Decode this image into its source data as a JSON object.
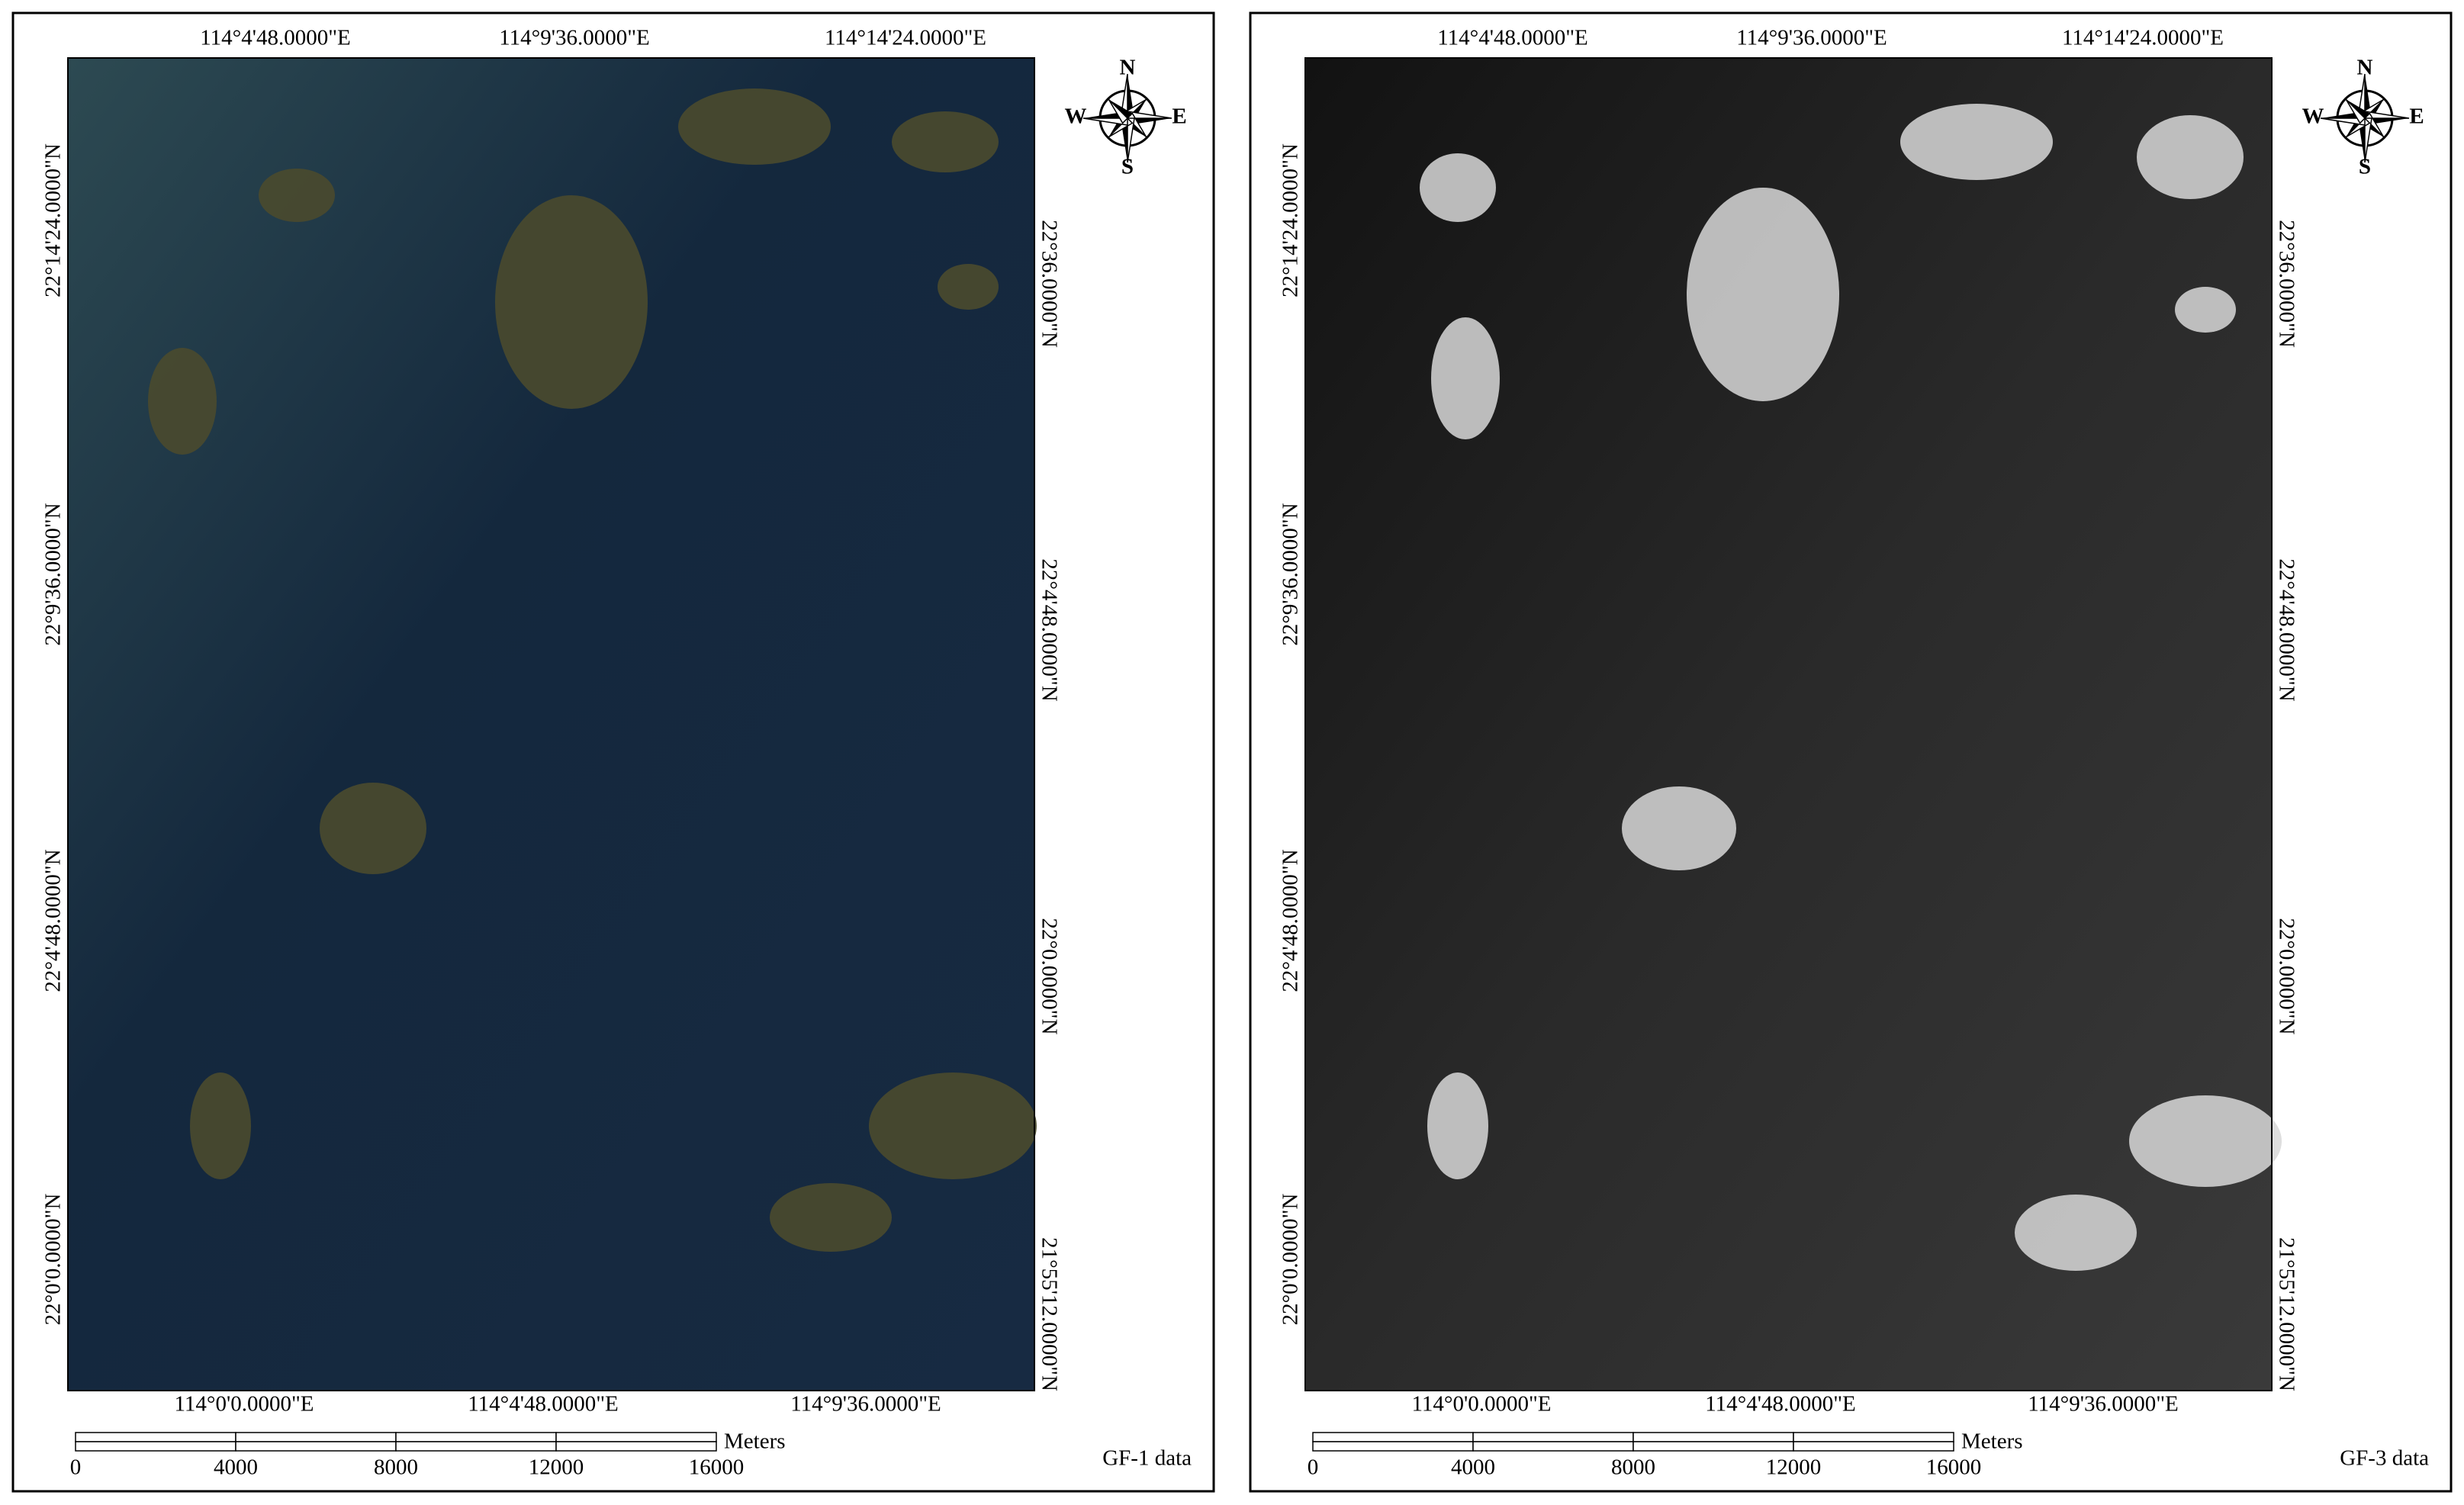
{
  "panels": [
    {
      "top_labels": [
        "114°4'48.0000\"E",
        "114°9'36.0000\"E",
        "114°14'24.0000\"E"
      ],
      "bottom_labels": [
        "114°0'0.0000\"E",
        "114°4'48.0000\"E",
        "114°9'36.0000\"E"
      ],
      "left_labels": [
        "22°14'24.0000\"N",
        "22°9'36.0000\"N",
        "22°4'48.0000\"N",
        "22°0'0.0000\"N"
      ],
      "right_labels": [
        "22°36.0000\"N",
        "22°4'48.0000\"N",
        "22°0.0000\"N",
        "21°55'12.0000\"N"
      ],
      "scale": {
        "ticks": [
          0,
          4000,
          8000,
          12000,
          16000
        ],
        "unit": "Meters"
      },
      "compass": {
        "n": "N",
        "e": "E",
        "s": "S",
        "w": "W"
      },
      "caption": "GF-1 data"
    },
    {
      "top_labels": [
        "114°4'48.0000\"E",
        "114°9'36.0000\"E",
        "114°14'24.0000\"E"
      ],
      "bottom_labels": [
        "114°0'0.0000\"E",
        "114°4'48.0000\"E",
        "114°9'36.0000\"E"
      ],
      "left_labels": [
        "22°14'24.0000\"N",
        "22°9'36.0000\"N",
        "22°4'48.0000\"N",
        "22°0'0.0000\"N"
      ],
      "right_labels": [
        "22°36.0000\"N",
        "22°4'48.0000\"N",
        "22°0.0000\"N",
        "21°55'12.0000\"N"
      ],
      "scale": {
        "ticks": [
          0,
          4000,
          8000,
          12000,
          16000
        ],
        "unit": "Meters"
      },
      "compass": {
        "n": "N",
        "e": "E",
        "s": "S",
        "w": "W"
      },
      "caption": "GF-3 data"
    }
  ]
}
